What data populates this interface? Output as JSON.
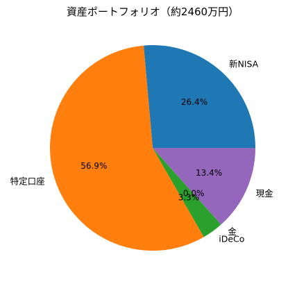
{
  "chart_data": {
    "type": "pie",
    "title": "資産ポートフォリオ（約2460万円）",
    "start_angle_deg": 0,
    "direction": "counterclockwise",
    "slices": [
      {
        "label": "新NISA",
        "value": 26.4,
        "pct_label": "26.4%",
        "color": "#1f77b4"
      },
      {
        "label": "特定口座",
        "value": 56.9,
        "pct_label": "56.9%",
        "color": "#ff7f0e"
      },
      {
        "label": "iDeCo",
        "value": 3.3,
        "pct_label": "3.3%",
        "color": "#2ca02c"
      },
      {
        "label": "金",
        "value": 0.0,
        "pct_label": "0.0%",
        "color": "#d62728"
      },
      {
        "label": "現金",
        "value": 13.4,
        "pct_label": "13.4%",
        "color": "#9467bd"
      }
    ]
  }
}
